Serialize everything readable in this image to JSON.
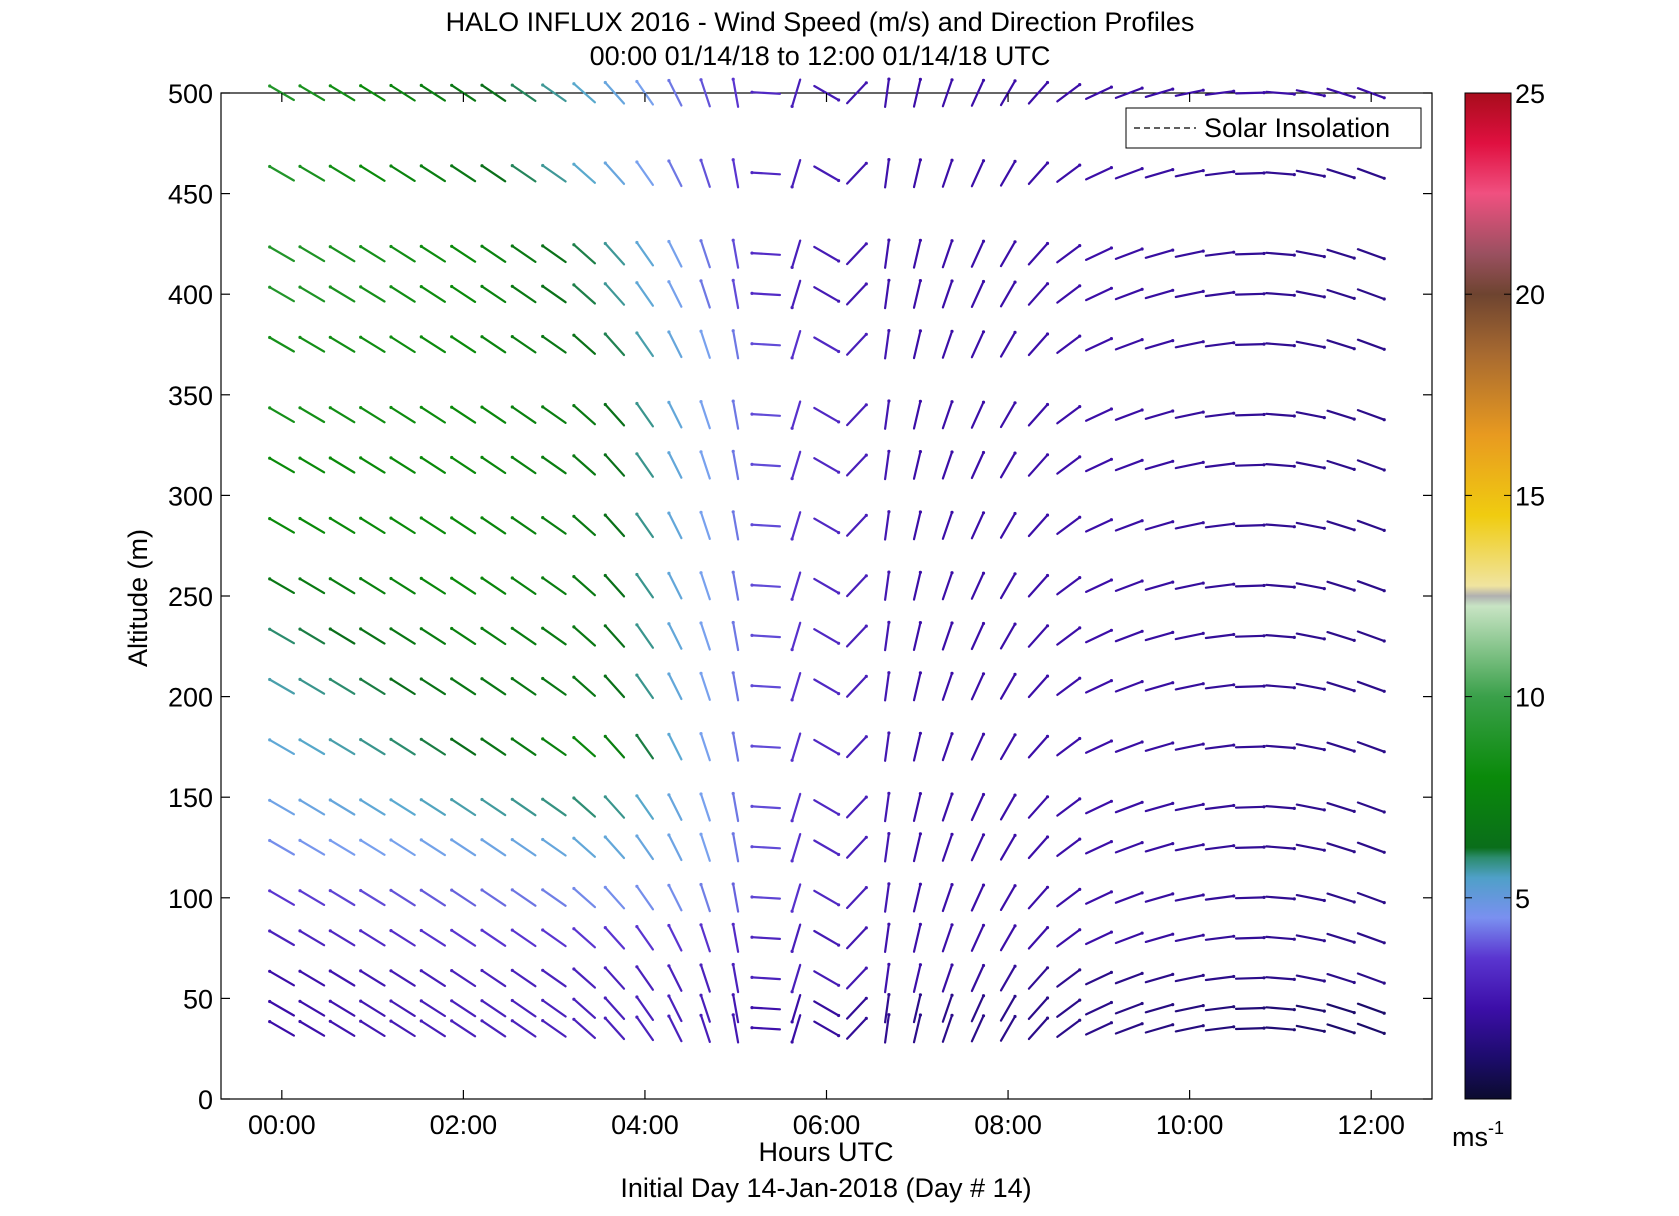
{
  "chart_data": {
    "type": "scatter",
    "subtype": "wind-barb-vector-field",
    "title": "HALO INFLUX 2016 - Wind Speed (m/s) and Direction Profiles",
    "subtitle": "00:00 01/14/18 to 12:00 01/14/18  UTC",
    "xlabel": "Hours UTC",
    "xlabel2": "Initial Day 14-Jan-2018 (Day # 14)",
    "ylabel": "Altitude (m)",
    "xlim": [
      -0.67,
      12.67
    ],
    "ylim": [
      0,
      500
    ],
    "x_ticks": [
      0,
      2,
      4,
      6,
      8,
      10,
      12
    ],
    "x_tick_labels": [
      "00:00",
      "02:00",
      "04:00",
      "06:00",
      "08:00",
      "10:00",
      "12:00"
    ],
    "y_ticks": [
      0,
      50,
      100,
      150,
      200,
      250,
      300,
      350,
      400,
      450,
      500
    ],
    "y_tick_labels": [
      "0",
      "50",
      "100",
      "150",
      "200",
      "250",
      "300",
      "350",
      "400",
      "450",
      "500"
    ],
    "legend": {
      "entries": [
        "Solar Insolation"
      ],
      "position": "top-right"
    },
    "colorbar": {
      "ticks": [
        5,
        10,
        15,
        20,
        25
      ],
      "tick_labels": [
        "5",
        "10",
        "15",
        "20",
        "25"
      ],
      "range": [
        0,
        25
      ],
      "unit_label": "ms",
      "unit_exponent": "-1"
    },
    "grid": false,
    "time_start_hours": 0.0,
    "time_step_hours": 0.3333,
    "altitudes": [
      500,
      460,
      420,
      400,
      375,
      340,
      315,
      285,
      255,
      230,
      205,
      175,
      145,
      125,
      100,
      80,
      60,
      45,
      35
    ],
    "direction_nodes_hours": [
      0,
      3,
      4,
      5,
      6.5,
      8,
      9,
      10.5,
      11.8
    ],
    "direction_nodes_deg": [
      300,
      305,
      325,
      350,
      5,
      30,
      65,
      85,
      110
    ],
    "speed_nodes_hours": [
      0,
      2,
      3.5,
      4.5,
      5.5,
      7,
      9,
      11.8
    ],
    "speed_profiles_ms": [
      {
        "altitude": 500,
        "values": [
          9,
          7,
          5,
          3.5,
          2.5,
          2,
          2,
          2
        ]
      },
      {
        "altitude": 460,
        "values": [
          9,
          7,
          5,
          3.5,
          2.5,
          2,
          2,
          1.5
        ]
      },
      {
        "altitude": 420,
        "values": [
          9,
          8,
          6,
          4,
          2.5,
          2,
          2,
          1.5
        ]
      },
      {
        "altitude": 400,
        "values": [
          9,
          8,
          6,
          4,
          2.5,
          2,
          2,
          1.5
        ]
      },
      {
        "altitude": 375,
        "values": [
          8.5,
          8,
          6.5,
          4.5,
          3,
          2,
          2,
          1.5
        ]
      },
      {
        "altitude": 340,
        "values": [
          8.5,
          8,
          7,
          4.5,
          3,
          2,
          2,
          1.5
        ]
      },
      {
        "altitude": 315,
        "values": [
          8,
          8,
          7,
          4.5,
          3,
          2,
          2,
          1.5
        ]
      },
      {
        "altitude": 285,
        "values": [
          8,
          8,
          7,
          4.5,
          3,
          2,
          2,
          1.5
        ]
      },
      {
        "altitude": 255,
        "values": [
          7,
          8,
          7,
          4.5,
          3,
          2,
          2,
          1.5
        ]
      },
      {
        "altitude": 230,
        "values": [
          6,
          7.5,
          7,
          4.5,
          3,
          2,
          2,
          1.5
        ]
      },
      {
        "altitude": 205,
        "values": [
          5.5,
          7,
          7,
          4.5,
          3,
          2,
          2,
          1.5
        ]
      },
      {
        "altitude": 175,
        "values": [
          5,
          6.5,
          8,
          4.5,
          3,
          2,
          2,
          1.5
        ]
      },
      {
        "altitude": 145,
        "values": [
          4.5,
          5.5,
          6,
          4.5,
          3,
          2,
          2,
          1.5
        ]
      },
      {
        "altitude": 125,
        "values": [
          4,
          4.5,
          5,
          4.5,
          3,
          2,
          2,
          1.5
        ]
      },
      {
        "altitude": 100,
        "values": [
          3,
          3.5,
          4,
          4,
          3,
          2,
          2,
          1.5
        ]
      },
      {
        "altitude": 80,
        "values": [
          2.5,
          3,
          3,
          3,
          2.5,
          2,
          2,
          1.5
        ]
      },
      {
        "altitude": 60,
        "values": [
          2,
          2.5,
          2.5,
          2.5,
          2.5,
          2,
          1.5,
          1.5
        ]
      },
      {
        "altitude": 45,
        "values": [
          2,
          2.5,
          2.5,
          2.5,
          2,
          1.5,
          1.5,
          1
        ]
      },
      {
        "altitude": 35,
        "values": [
          2,
          2.5,
          2.5,
          2.5,
          2,
          1.5,
          1.5,
          1
        ]
      }
    ]
  }
}
